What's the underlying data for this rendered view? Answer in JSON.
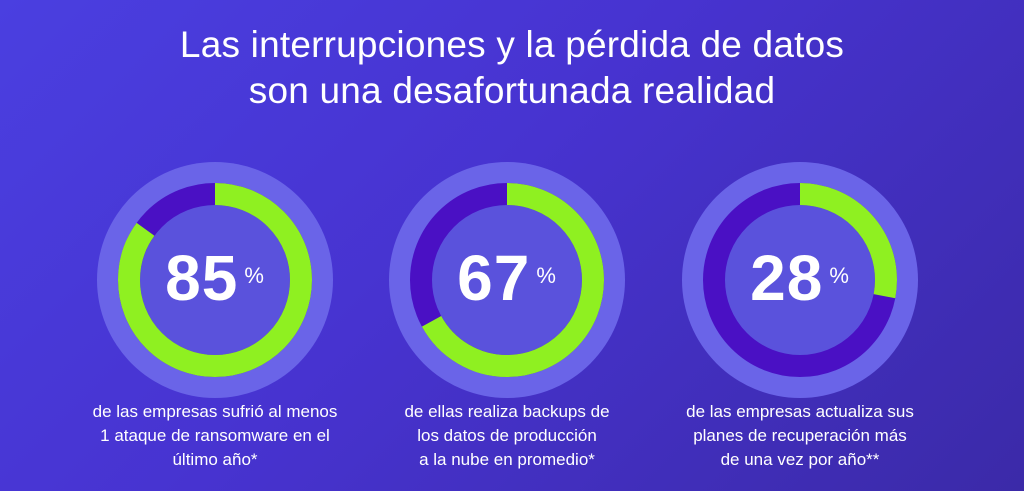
{
  "header": {
    "title_line1": "Las interrupciones y la pérdida de datos",
    "title_line2": "son una desafortunada realidad"
  },
  "colors": {
    "progress": "#8ff021",
    "track": "#4a10c4",
    "halo": "#6a64e8",
    "inner": "#5a52dc"
  },
  "stats": [
    {
      "value": "85",
      "percent": 85,
      "unit": "%",
      "desc": [
        "de las empresas sufrió al menos",
        "1 ataque de ransomware en el",
        "último año*"
      ]
    },
    {
      "value": "67",
      "percent": 67,
      "unit": "%",
      "desc": [
        "de ellas realiza backups de",
        "los datos de producción",
        "a la nube en promedio*"
      ]
    },
    {
      "value": "28",
      "percent": 28,
      "unit": "%",
      "desc": [
        "de las empresas actualiza sus",
        "planes de recuperación más",
        "de una vez por año**"
      ]
    }
  ]
}
